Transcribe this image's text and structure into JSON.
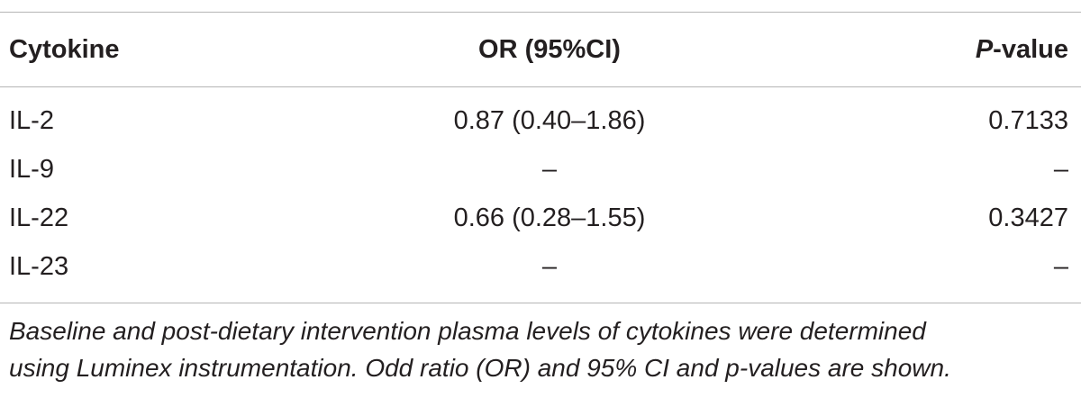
{
  "table": {
    "headers": {
      "cytokine": "Cytokine",
      "or_ci": "OR (95%CI)",
      "p_italic": "P",
      "p_rest": "-value"
    },
    "rows": [
      {
        "cytokine": "IL-2",
        "or_ci": "0.87 (0.40–1.86)",
        "p_value": "0.7133"
      },
      {
        "cytokine": "IL-9",
        "or_ci": "–",
        "p_value": "–"
      },
      {
        "cytokine": "IL-22",
        "or_ci": "0.66 (0.28–1.55)",
        "p_value": "0.3427"
      },
      {
        "cytokine": "IL-23",
        "or_ci": "–",
        "p_value": "–"
      }
    ]
  },
  "footnote": {
    "line1": "Baseline and post-dietary intervention plasma levels of cytokines were determined",
    "line2": "using Luminex instrumentation. Odd ratio (OR) and 95% CI and p-values are shown."
  }
}
